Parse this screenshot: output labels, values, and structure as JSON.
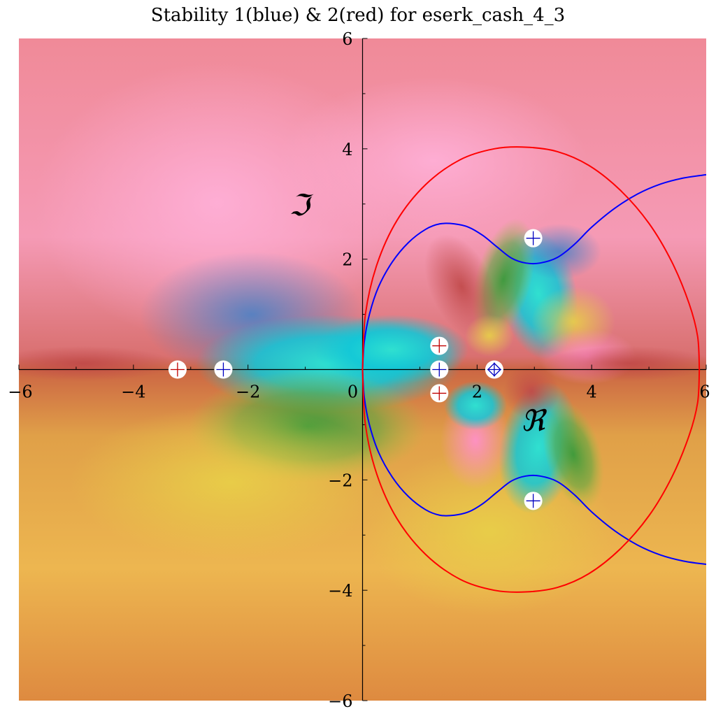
{
  "chart_data": {
    "type": "line",
    "title": "Stability 1(blue) & 2(red) for eserk_cash_4_3",
    "xlabel": "ℜ",
    "ylabel": "ℑ",
    "xlim": [
      -6,
      6
    ],
    "ylim": [
      -6,
      6
    ],
    "x_ticks": [
      -6,
      -4,
      -2,
      0,
      2,
      4,
      6
    ],
    "y_ticks": [
      -6,
      -4,
      -2,
      2,
      4,
      6
    ],
    "x_tick_labels": [
      "−6",
      "−4",
      "−2",
      "0",
      "2",
      "4",
      "6"
    ],
    "y_tick_labels": [
      "−6",
      "−4",
      "−2",
      "2",
      "4",
      "6"
    ],
    "grid": false,
    "background": "domain coloring of stability function",
    "series": [
      {
        "name": "1",
        "color": "#0000ff",
        "paths": [
          [
            [
              0,
              0
            ],
            [
              0.03,
              0.5
            ],
            [
              0.12,
              1.0
            ],
            [
              0.28,
              1.5
            ],
            [
              0.52,
              1.95
            ],
            [
              0.8,
              2.3
            ],
            [
              1.1,
              2.54
            ],
            [
              1.35,
              2.64
            ],
            [
              1.6,
              2.64
            ],
            [
              1.85,
              2.58
            ],
            [
              2.1,
              2.43
            ],
            [
              2.35,
              2.22
            ],
            [
              2.6,
              2.02
            ],
            [
              2.85,
              1.93
            ],
            [
              3.1,
              1.93
            ],
            [
              3.4,
              2.03
            ],
            [
              3.7,
              2.27
            ],
            [
              4.0,
              2.58
            ],
            [
              4.4,
              2.92
            ],
            [
              4.8,
              3.18
            ],
            [
              5.2,
              3.36
            ],
            [
              5.6,
              3.47
            ],
            [
              6.0,
              3.53
            ]
          ],
          [
            [
              0,
              0
            ],
            [
              0.03,
              -0.5
            ],
            [
              0.12,
              -1.0
            ],
            [
              0.28,
              -1.5
            ],
            [
              0.52,
              -1.95
            ],
            [
              0.8,
              -2.3
            ],
            [
              1.1,
              -2.54
            ],
            [
              1.35,
              -2.64
            ],
            [
              1.6,
              -2.64
            ],
            [
              1.85,
              -2.58
            ],
            [
              2.1,
              -2.43
            ],
            [
              2.35,
              -2.22
            ],
            [
              2.6,
              -2.02
            ],
            [
              2.85,
              -1.93
            ],
            [
              3.1,
              -1.93
            ],
            [
              3.4,
              -2.03
            ],
            [
              3.7,
              -2.27
            ],
            [
              4.0,
              -2.58
            ],
            [
              4.4,
              -2.92
            ],
            [
              4.8,
              -3.18
            ],
            [
              5.2,
              -3.36
            ],
            [
              5.6,
              -3.47
            ],
            [
              6.0,
              -3.53
            ]
          ]
        ]
      },
      {
        "name": "2",
        "color": "#ff0000",
        "paths": [
          [
            [
              0,
              0
            ],
            [
              0.05,
              1.0
            ],
            [
              0.25,
              1.9
            ],
            [
              0.6,
              2.7
            ],
            [
              1.1,
              3.35
            ],
            [
              1.7,
              3.8
            ],
            [
              2.3,
              4.0
            ],
            [
              2.85,
              4.03
            ],
            [
              3.4,
              3.95
            ],
            [
              3.95,
              3.7
            ],
            [
              4.5,
              3.25
            ],
            [
              5.0,
              2.65
            ],
            [
              5.4,
              1.95
            ],
            [
              5.7,
              1.2
            ],
            [
              5.85,
              0.6
            ],
            [
              5.88,
              0
            ]
          ],
          [
            [
              0,
              0
            ],
            [
              0.05,
              -1.0
            ],
            [
              0.25,
              -1.9
            ],
            [
              0.6,
              -2.7
            ],
            [
              1.1,
              -3.35
            ],
            [
              1.7,
              -3.8
            ],
            [
              2.3,
              -4.0
            ],
            [
              2.85,
              -4.03
            ],
            [
              3.4,
              -3.95
            ],
            [
              3.95,
              -3.7
            ],
            [
              4.5,
              -3.25
            ],
            [
              5.0,
              -2.65
            ],
            [
              5.4,
              -1.95
            ],
            [
              5.7,
              -1.2
            ],
            [
              5.85,
              -0.6
            ],
            [
              5.88,
              0
            ]
          ]
        ]
      }
    ],
    "markers": [
      {
        "x": -3.23,
        "y": 0,
        "color": "#c00000",
        "shape": "plus"
      },
      {
        "x": -2.43,
        "y": 0,
        "color": "#0000c0",
        "shape": "plus"
      },
      {
        "x": 1.34,
        "y": 0.43,
        "color": "#c00000",
        "shape": "plus"
      },
      {
        "x": 1.34,
        "y": 0,
        "color": "#0000c0",
        "shape": "plus"
      },
      {
        "x": 1.34,
        "y": -0.43,
        "color": "#c00000",
        "shape": "plus"
      },
      {
        "x": 2.3,
        "y": 0,
        "color": "#0000c0",
        "shape": "diamond"
      },
      {
        "x": 2.98,
        "y": 2.38,
        "color": "#0000c0",
        "shape": "plus"
      },
      {
        "x": 2.98,
        "y": -2.38,
        "color": "#0000c0",
        "shape": "plus"
      }
    ]
  }
}
